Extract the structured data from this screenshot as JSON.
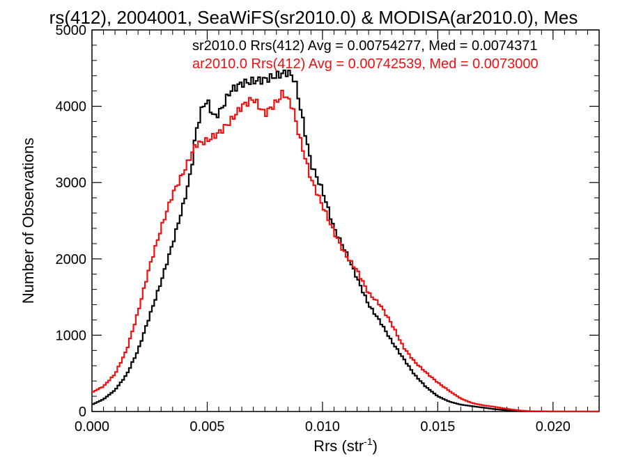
{
  "chart_data": {
    "type": "line",
    "title": "rs(412), 2004001, SeaWiFS(sr2010.0) & MODISA(ar2010.0), Mes",
    "xlabel": "Rrs (str",
    "xlabel_sup": "-1",
    "xlabel_close": ")",
    "ylabel": "Number of Observations",
    "xlim": [
      0.0,
      0.022
    ],
    "ylim": [
      0,
      5000
    ],
    "x_ticks": [
      0.0,
      0.005,
      0.01,
      0.015,
      0.02
    ],
    "x_tick_labels": [
      "0.000",
      "0.005",
      "0.010",
      "0.015",
      "0.020"
    ],
    "y_ticks": [
      0,
      1000,
      2000,
      3000,
      4000,
      5000
    ],
    "y_tick_labels": [
      "0",
      "1000",
      "2000",
      "3000",
      "4000",
      "5000"
    ],
    "grid": false,
    "legend_position": "top-right",
    "series": [
      {
        "name": "sr2010.0 Rrs(412) Avg = 0.00754277, Med = 0.0074371",
        "color": "#000000",
        "points": [
          [
            0.0,
            90
          ],
          [
            0.0005,
            160
          ],
          [
            0.001,
            280
          ],
          [
            0.0015,
            480
          ],
          [
            0.002,
            800
          ],
          [
            0.0025,
            1250
          ],
          [
            0.003,
            1700
          ],
          [
            0.0035,
            2200
          ],
          [
            0.004,
            2750
          ],
          [
            0.0043,
            3150
          ],
          [
            0.0045,
            3650
          ],
          [
            0.0048,
            4000
          ],
          [
            0.005,
            4070
          ],
          [
            0.0053,
            3850
          ],
          [
            0.0056,
            3950
          ],
          [
            0.006,
            4200
          ],
          [
            0.0065,
            4300
          ],
          [
            0.007,
            4330
          ],
          [
            0.0075,
            4350
          ],
          [
            0.008,
            4400
          ],
          [
            0.0085,
            4450
          ],
          [
            0.0088,
            4350
          ],
          [
            0.009,
            4050
          ],
          [
            0.0095,
            3250
          ],
          [
            0.01,
            2900
          ],
          [
            0.0105,
            2400
          ],
          [
            0.011,
            2100
          ],
          [
            0.0115,
            1750
          ],
          [
            0.012,
            1400
          ],
          [
            0.0125,
            1180
          ],
          [
            0.013,
            920
          ],
          [
            0.0135,
            700
          ],
          [
            0.014,
            480
          ],
          [
            0.0145,
            320
          ],
          [
            0.015,
            200
          ],
          [
            0.0155,
            130
          ],
          [
            0.016,
            90
          ],
          [
            0.0165,
            70
          ],
          [
            0.017,
            50
          ],
          [
            0.0175,
            30
          ],
          [
            0.018,
            15
          ],
          [
            0.0185,
            6
          ],
          [
            0.019,
            2
          ],
          [
            0.02,
            0
          ],
          [
            0.022,
            0
          ]
        ]
      },
      {
        "name": "ar2010.0 Rrs(412) Avg = 0.00742539, Med = 0.0073000",
        "color": "#ee1111",
        "points": [
          [
            0.0,
            250
          ],
          [
            0.0005,
            330
          ],
          [
            0.001,
            490
          ],
          [
            0.0015,
            800
          ],
          [
            0.002,
            1300
          ],
          [
            0.0025,
            1900
          ],
          [
            0.003,
            2400
          ],
          [
            0.0035,
            2850
          ],
          [
            0.004,
            3150
          ],
          [
            0.0045,
            3500
          ],
          [
            0.005,
            3550
          ],
          [
            0.0055,
            3650
          ],
          [
            0.006,
            3800
          ],
          [
            0.0065,
            4000
          ],
          [
            0.007,
            4100
          ],
          [
            0.0075,
            3900
          ],
          [
            0.008,
            4050
          ],
          [
            0.0083,
            4180
          ],
          [
            0.0087,
            4000
          ],
          [
            0.009,
            3600
          ],
          [
            0.0095,
            3050
          ],
          [
            0.01,
            2700
          ],
          [
            0.0105,
            2350
          ],
          [
            0.011,
            2050
          ],
          [
            0.0115,
            1850
          ],
          [
            0.012,
            1550
          ],
          [
            0.0125,
            1400
          ],
          [
            0.013,
            1150
          ],
          [
            0.0135,
            850
          ],
          [
            0.014,
            650
          ],
          [
            0.0145,
            510
          ],
          [
            0.015,
            380
          ],
          [
            0.0155,
            270
          ],
          [
            0.016,
            170
          ],
          [
            0.0165,
            110
          ],
          [
            0.017,
            80
          ],
          [
            0.0175,
            60
          ],
          [
            0.018,
            35
          ],
          [
            0.0185,
            15
          ],
          [
            0.019,
            5
          ],
          [
            0.02,
            1
          ],
          [
            0.022,
            0
          ]
        ]
      }
    ]
  }
}
